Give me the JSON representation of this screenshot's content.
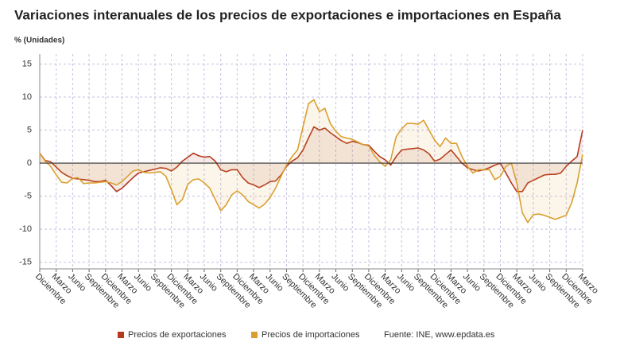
{
  "chart_data": {
    "type": "line",
    "title": "Variaciones interanuales de los precios de exportaciones e importaciones en España",
    "y_label": "% (Unidades)",
    "source": "Fuente: INE, www.epdata.es",
    "categories": [
      "Diciembre",
      null,
      null,
      "Marzo",
      null,
      null,
      "Junio",
      null,
      null,
      "Septiembre",
      null,
      null,
      "Diciembre",
      null,
      null,
      "Marzo",
      null,
      null,
      "Junio",
      null,
      null,
      "Septiembre",
      null,
      null,
      "Diciembre",
      null,
      null,
      "Marzo",
      null,
      null,
      "Junio",
      null,
      null,
      "Septiembre",
      null,
      null,
      "Diciembre",
      null,
      null,
      "Marzo",
      null,
      null,
      "Junio",
      null,
      null,
      "Septiembre",
      null,
      null,
      "Diciembre",
      null,
      null,
      "Marzo",
      null,
      null,
      "Junio",
      null,
      null,
      "Septiembre",
      null,
      null,
      "Diciembre",
      null,
      null,
      "Marzo",
      null,
      null,
      "Junio",
      null,
      null,
      "Septiembre",
      null,
      null,
      "Diciembre",
      null,
      null,
      "Marzo",
      null,
      null,
      "Junio",
      null,
      null,
      "Septiembre",
      null,
      null,
      "Diciembre",
      null,
      null,
      "Marzo",
      null,
      null,
      "Junio",
      null,
      null,
      "Septiembre",
      null,
      null,
      "Diciembre",
      null,
      null,
      "Marzo"
    ],
    "series": [
      {
        "name": "Precios de exportaciones",
        "color": "#b5391f",
        "values": [
          1.5,
          0.4,
          0.2,
          -0.6,
          -1.4,
          -1.9,
          -2.3,
          -2.4,
          -2.5,
          -2.6,
          -2.8,
          -2.8,
          -2.6,
          -3.4,
          -4.3,
          -3.8,
          -3.0,
          -2.2,
          -1.5,
          -1.3,
          -1.1,
          -0.9,
          -0.7,
          -0.8,
          -1.2,
          -0.6,
          0.3,
          0.9,
          1.5,
          1.1,
          0.9,
          1.0,
          0.3,
          -1.0,
          -1.3,
          -1.0,
          -1.0,
          -2.2,
          -3.0,
          -3.3,
          -3.7,
          -3.3,
          -2.8,
          -2.7,
          -1.8,
          -0.5,
          0.3,
          0.8,
          2.0,
          3.8,
          5.5,
          5.0,
          5.3,
          4.6,
          4.0,
          3.4,
          3.0,
          3.3,
          3.1,
          2.8,
          2.7,
          1.8,
          1.0,
          0.5,
          -0.3,
          1.0,
          2.0,
          2.1,
          2.2,
          2.3,
          2.0,
          1.4,
          0.3,
          0.6,
          1.3,
          2.0,
          1.0,
          0,
          -0.7,
          -1.0,
          -1.2,
          -1.0,
          -0.7,
          -0.3,
          0,
          -1.5,
          -3.0,
          -4.3,
          -4.3,
          -3.0,
          -2.6,
          -2.2,
          -1.8,
          -1.7,
          -1.7,
          -1.5,
          -0.5,
          0.3,
          1.0,
          5.0
        ]
      },
      {
        "name": "Precios de importaciones",
        "color": "#d9a030",
        "values": [
          1.5,
          0.3,
          -0.5,
          -1.8,
          -2.9,
          -3.0,
          -2.3,
          -2.2,
          -3.1,
          -3.0,
          -3.0,
          -2.9,
          -2.8,
          -3.0,
          -3.3,
          -2.8,
          -2.0,
          -1.2,
          -1.0,
          -1.4,
          -1.5,
          -1.4,
          -1.3,
          -2.0,
          -4.0,
          -6.3,
          -5.5,
          -3.2,
          -2.5,
          -2.4,
          -3.0,
          -3.8,
          -5.5,
          -7.2,
          -6.3,
          -4.8,
          -4.2,
          -4.8,
          -5.8,
          -6.3,
          -6.8,
          -6.2,
          -5.2,
          -3.8,
          -2.0,
          -0.3,
          1.0,
          2.0,
          5.5,
          9.0,
          9.6,
          7.8,
          8.3,
          6.0,
          4.8,
          4.0,
          3.8,
          3.6,
          3.2,
          2.8,
          2.6,
          1.2,
          0.2,
          -0.5,
          0.5,
          4.0,
          5.2,
          6.0,
          6.0,
          5.9,
          6.5,
          5.0,
          3.5,
          2.5,
          3.8,
          3.0,
          3.0,
          1.0,
          -0.5,
          -1.5,
          -1.0,
          -1.0,
          -1.0,
          -2.5,
          -2.0,
          -0.5,
          0,
          -3.0,
          -7.5,
          -9.0,
          -7.8,
          -7.7,
          -7.9,
          -8.2,
          -8.5,
          -8.2,
          -7.9,
          -6.0,
          -3.0,
          1.3
        ]
      }
    ],
    "ylim": [
      -16,
      16.5
    ],
    "yticks": [
      -15,
      -10,
      -5,
      0,
      5,
      10,
      15
    ],
    "grid": true
  }
}
